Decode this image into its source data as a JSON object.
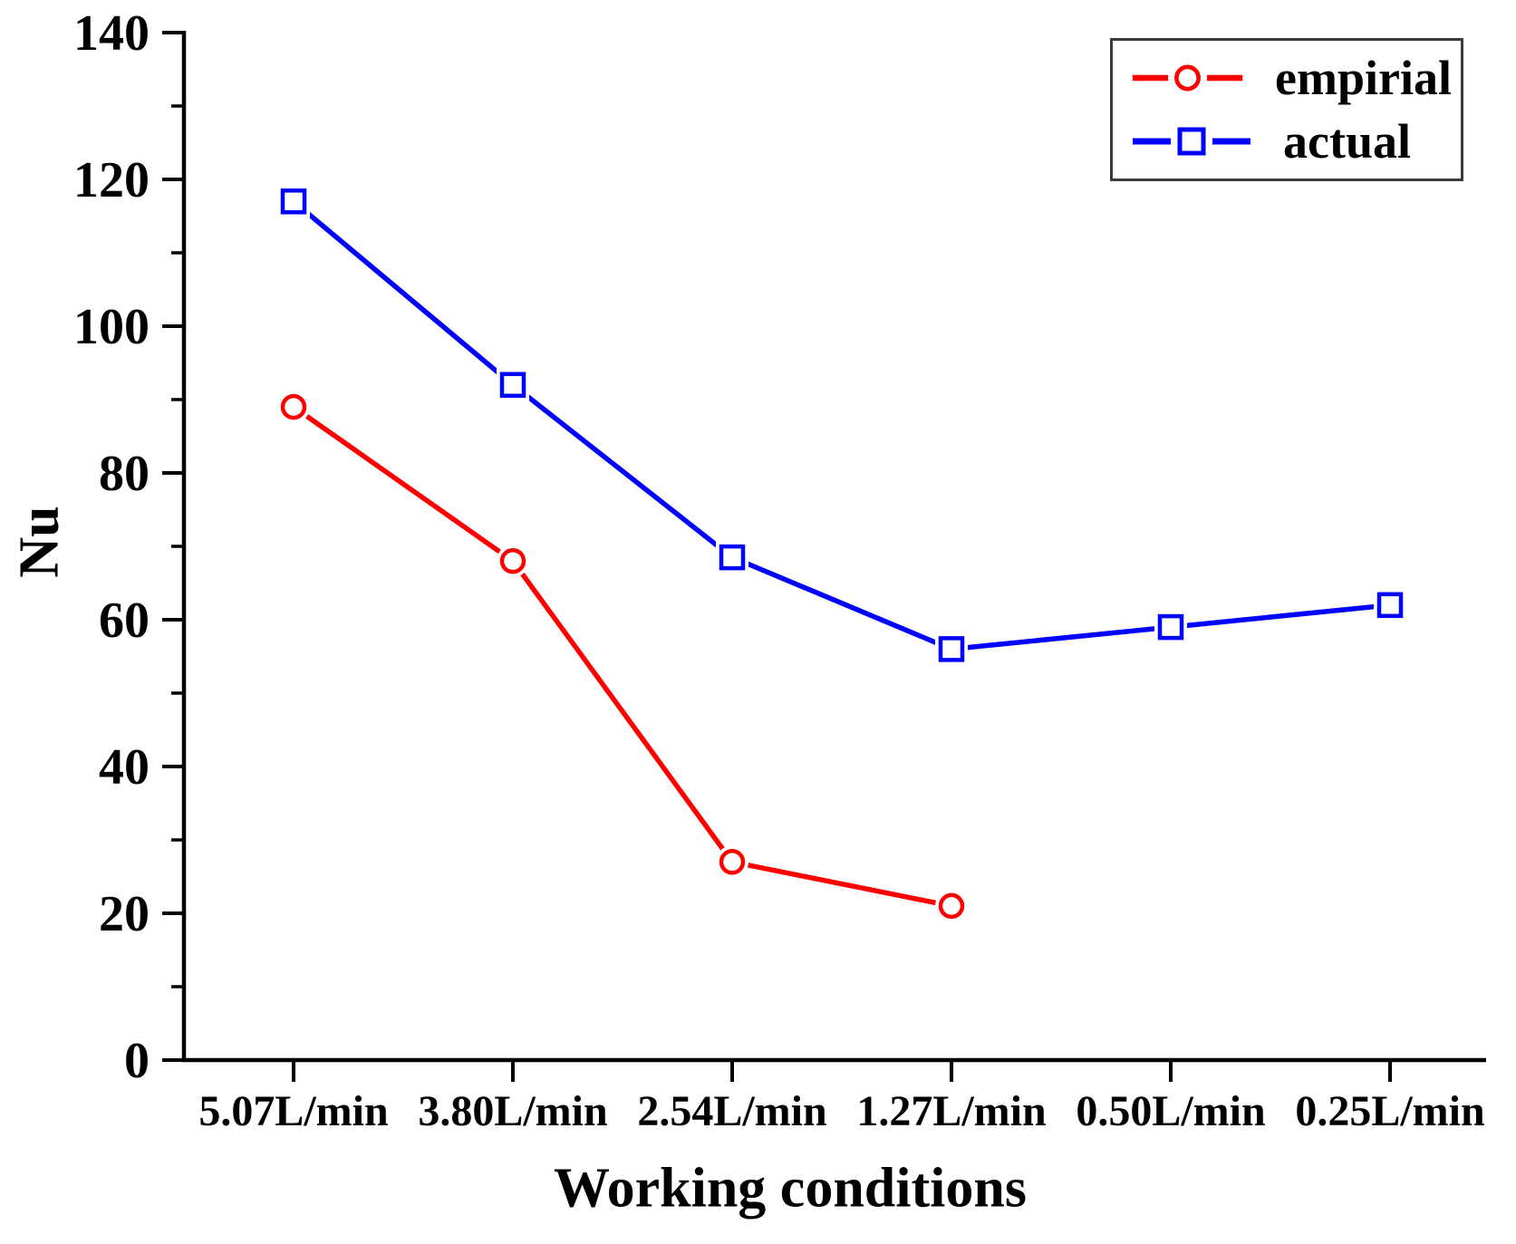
{
  "chart_data": {
    "type": "line",
    "title": "",
    "xlabel": "Working conditions",
    "ylabel": "Nu",
    "categories": [
      "5.07L/min",
      "3.80L/min",
      "2.54L/min",
      "1.27L/min",
      "0.50L/min",
      "0.25L/min"
    ],
    "series": [
      {
        "name": "empirial",
        "color": "#ff0000",
        "marker": "circle",
        "values": [
          89,
          68,
          27,
          21,
          null,
          null
        ]
      },
      {
        "name": "actual",
        "color": "#0000ff",
        "marker": "square",
        "values": [
          117,
          92,
          68.5,
          56,
          59,
          62
        ]
      }
    ],
    "ylim": [
      0,
      140
    ],
    "yticks": [
      0,
      20,
      40,
      60,
      80,
      100,
      120,
      140
    ],
    "minor_ytick_step": 10,
    "grid": false,
    "legend": {
      "position": "top-right",
      "framed": true,
      "border_color": "#3c3c3c",
      "entries": [
        "empirial",
        "actual"
      ]
    },
    "axis_color": "#000000"
  }
}
